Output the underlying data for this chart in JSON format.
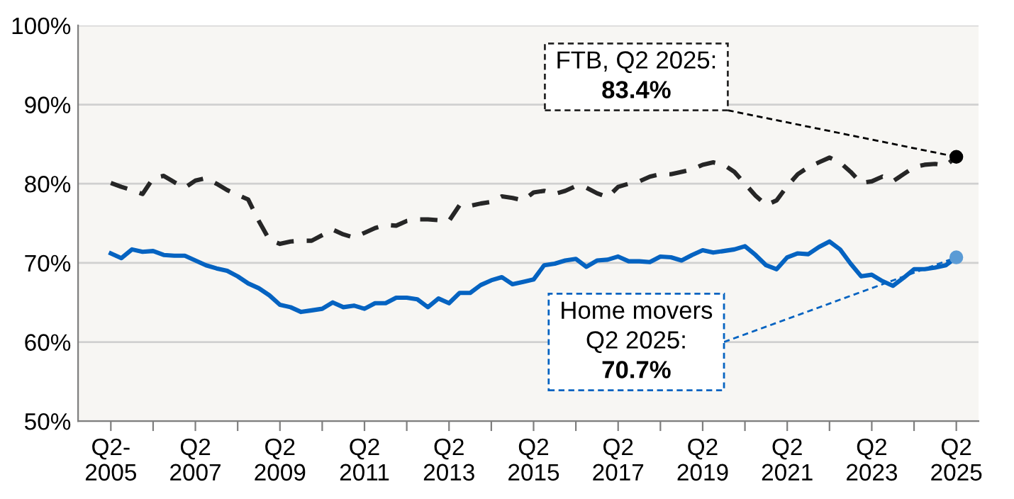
{
  "chart_data": {
    "type": "line",
    "categories": [
      "Q2-\n2005",
      null,
      null,
      null,
      null,
      null,
      null,
      null,
      "Q2\n2007",
      null,
      null,
      null,
      null,
      null,
      null,
      null,
      "Q2\n2009",
      null,
      null,
      null,
      null,
      null,
      null,
      null,
      "Q2\n2011",
      null,
      null,
      null,
      null,
      null,
      null,
      null,
      "Q2\n2013",
      null,
      null,
      null,
      null,
      null,
      null,
      null,
      "Q2\n2015",
      null,
      null,
      null,
      null,
      null,
      null,
      null,
      "Q2\n2017",
      null,
      null,
      null,
      null,
      null,
      null,
      null,
      "Q2\n2019",
      null,
      null,
      null,
      null,
      null,
      null,
      null,
      "Q2\n2021",
      null,
      null,
      null,
      null,
      null,
      null,
      null,
      "Q2\n2023",
      null,
      null,
      null,
      null,
      null,
      null,
      null,
      "Q2\n2025"
    ],
    "series": [
      {
        "color": "#262626",
        "line_style": "dashed",
        "values": [
          80.1,
          79.6,
          79.2,
          78.7,
          80.7,
          81.0,
          80.2,
          79.5,
          80.4,
          80.7,
          80.0,
          79.2,
          78.6,
          78.0,
          75.3,
          72.9,
          72.4,
          72.7,
          72.8,
          72.8,
          73.5,
          74.2,
          73.6,
          73.2,
          73.8,
          74.4,
          74.8,
          74.7,
          75.3,
          75.5,
          75.5,
          75.4,
          75.3,
          77.3,
          77.2,
          77.5,
          77.7,
          78.4,
          78.2,
          77.9,
          78.9,
          79.1,
          78.7,
          79.1,
          79.7,
          79.5,
          78.8,
          78.3,
          79.6,
          80.0,
          80.3,
          80.9,
          81.2,
          81.2,
          81.5,
          81.8,
          82.4,
          82.7,
          82.4,
          81.5,
          80.0,
          78.5,
          77.3,
          77.9,
          79.7,
          81.2,
          82.1,
          82.7,
          83.3,
          82.7,
          81.5,
          80.1,
          80.3,
          80.9,
          80.3,
          81.2,
          82.1,
          82.4,
          82.5,
          82.3,
          83.4
        ]
      },
      {
        "color": "#0563c1",
        "line_style": "solid",
        "values": [
          71.2,
          70.6,
          71.7,
          71.4,
          71.5,
          71.0,
          70.9,
          70.9,
          70.3,
          69.7,
          69.3,
          69.0,
          68.3,
          67.4,
          66.8,
          65.9,
          64.7,
          64.4,
          63.8,
          64.0,
          64.2,
          65.0,
          64.4,
          64.6,
          64.2,
          64.9,
          64.9,
          65.6,
          65.6,
          65.4,
          64.4,
          65.5,
          64.9,
          66.2,
          66.2,
          67.2,
          67.8,
          68.2,
          67.3,
          67.6,
          67.9,
          69.7,
          69.9,
          70.3,
          70.5,
          69.5,
          70.3,
          70.4,
          70.8,
          70.2,
          70.2,
          70.1,
          70.8,
          70.7,
          70.3,
          71.0,
          71.6,
          71.3,
          71.5,
          71.7,
          72.1,
          71.0,
          69.7,
          69.2,
          70.7,
          71.2,
          71.1,
          72.0,
          72.7,
          71.7,
          69.9,
          68.3,
          68.5,
          67.7,
          67.1,
          68.1,
          69.2,
          69.2,
          69.4,
          69.7,
          70.7
        ]
      }
    ],
    "ylim": [
      50,
      100
    ],
    "yticks": [
      {
        "value": 50,
        "label": "50%"
      },
      {
        "value": 60,
        "label": "60%"
      },
      {
        "value": 70,
        "label": "70%"
      },
      {
        "value": 80,
        "label": "80%"
      },
      {
        "value": 90,
        "label": "90%"
      },
      {
        "value": 100,
        "label": "100%"
      }
    ],
    "grid": "y",
    "legend": false,
    "annotations": [
      {
        "text": "FTB, Q2 2025:\n83.4%",
        "x": "Q2\n2025",
        "y": 83.4
      },
      {
        "text": "Home movers\nQ2 2025:\n70.7%",
        "x": "Q2\n2025",
        "y": 70.7
      }
    ]
  }
}
